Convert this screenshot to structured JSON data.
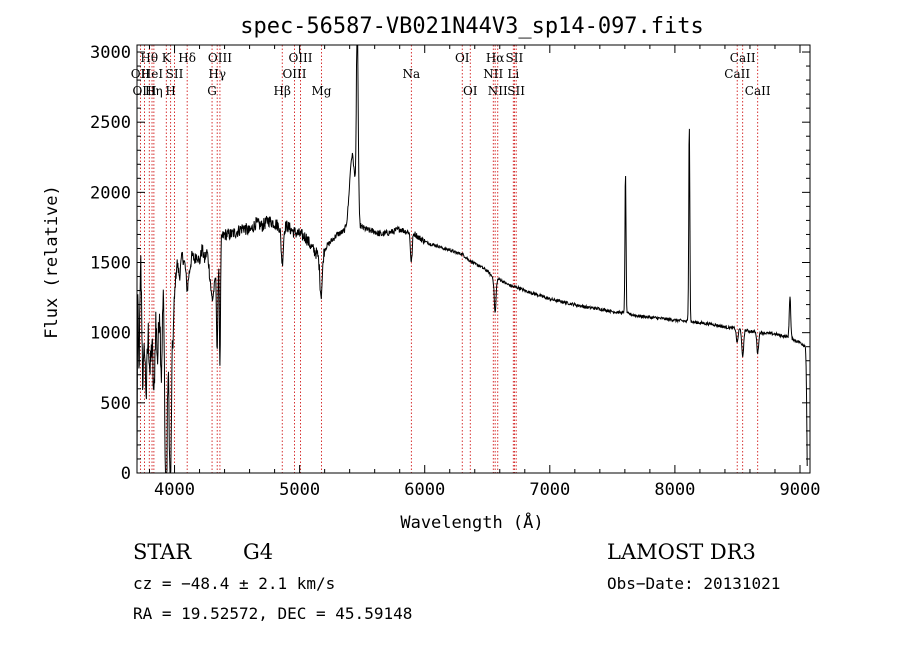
{
  "chart_data": {
    "type": "line",
    "title": "spec-56587-VB021N44V3_sp14-097.fits",
    "xlabel": "Wavelength (Å)",
    "ylabel": "Flux (relative)",
    "xlim": [
      3700,
      9080
    ],
    "ylim": [
      0,
      3050
    ],
    "xticks": [
      4000,
      5000,
      6000,
      7000,
      8000,
      9000
    ],
    "yticks": [
      0,
      500,
      1000,
      1500,
      2000,
      2500,
      3000
    ],
    "continuum": [
      [
        3700,
        0
      ],
      [
        3705,
        1300
      ],
      [
        3715,
        700
      ],
      [
        3730,
        1500
      ],
      [
        3745,
        900
      ],
      [
        3760,
        1600
      ],
      [
        3775,
        800
      ],
      [
        3790,
        1000
      ],
      [
        3805,
        700
      ],
      [
        3820,
        950
      ],
      [
        3835,
        500
      ],
      [
        3850,
        1100
      ],
      [
        3865,
        800
      ],
      [
        3880,
        1200
      ],
      [
        3895,
        700
      ],
      [
        3910,
        1300
      ],
      [
        3925,
        500
      ],
      [
        3935,
        400
      ],
      [
        3945,
        900
      ],
      [
        3955,
        600
      ],
      [
        3965,
        350
      ],
      [
        3975,
        900
      ],
      [
        3990,
        1000
      ],
      [
        4005,
        1350
      ],
      [
        4020,
        1500
      ],
      [
        4040,
        1400
      ],
      [
        4060,
        1550
      ],
      [
        4080,
        1500
      ],
      [
        4100,
        1520
      ],
      [
        4120,
        1450
      ],
      [
        4140,
        1550
      ],
      [
        4160,
        1520
      ],
      [
        4180,
        1560
      ],
      [
        4200,
        1500
      ],
      [
        4220,
        1600
      ],
      [
        4240,
        1520
      ],
      [
        4260,
        1580
      ],
      [
        4280,
        1450
      ],
      [
        4300,
        1500
      ],
      [
        4320,
        1350
      ],
      [
        4340,
        1580
      ],
      [
        4360,
        1620
      ],
      [
        4380,
        1680
      ],
      [
        4400,
        1700
      ],
      [
        4450,
        1700
      ],
      [
        4500,
        1720
      ],
      [
        4550,
        1750
      ],
      [
        4600,
        1720
      ],
      [
        4650,
        1780
      ],
      [
        4700,
        1760
      ],
      [
        4750,
        1800
      ],
      [
        4800,
        1780
      ],
      [
        4850,
        1750
      ],
      [
        4900,
        1760
      ],
      [
        4950,
        1720
      ],
      [
        5000,
        1700
      ],
      [
        5050,
        1680
      ],
      [
        5100,
        1600
      ],
      [
        5150,
        1550
      ],
      [
        5200,
        1600
      ],
      [
        5250,
        1650
      ],
      [
        5300,
        1700
      ],
      [
        5350,
        1720
      ],
      [
        5400,
        1750
      ],
      [
        5450,
        1780
      ],
      [
        5500,
        1750
      ],
      [
        5550,
        1730
      ],
      [
        5600,
        1720
      ],
      [
        5650,
        1700
      ],
      [
        5700,
        1710
      ],
      [
        5750,
        1720
      ],
      [
        5800,
        1740
      ],
      [
        5850,
        1720
      ],
      [
        5900,
        1720
      ],
      [
        5950,
        1680
      ],
      [
        6000,
        1650
      ],
      [
        6050,
        1630
      ],
      [
        6100,
        1620
      ],
      [
        6150,
        1600
      ],
      [
        6200,
        1590
      ],
      [
        6250,
        1570
      ],
      [
        6300,
        1560
      ],
      [
        6350,
        1520
      ],
      [
        6400,
        1490
      ],
      [
        6450,
        1470
      ],
      [
        6500,
        1440
      ],
      [
        6560,
        1380
      ],
      [
        6600,
        1380
      ],
      [
        6650,
        1350
      ],
      [
        6700,
        1330
      ],
      [
        6750,
        1320
      ],
      [
        6800,
        1300
      ],
      [
        6900,
        1270
      ],
      [
        7000,
        1240
      ],
      [
        7100,
        1220
      ],
      [
        7200,
        1200
      ],
      [
        7300,
        1180
      ],
      [
        7400,
        1170
      ],
      [
        7500,
        1150
      ],
      [
        7600,
        1140
      ],
      [
        7700,
        1120
      ],
      [
        7800,
        1110
      ],
      [
        7900,
        1100
      ],
      [
        8000,
        1090
      ],
      [
        8100,
        1080
      ],
      [
        8200,
        1070
      ],
      [
        8300,
        1060
      ],
      [
        8400,
        1040
      ],
      [
        8500,
        1030
      ],
      [
        8600,
        1010
      ],
      [
        8700,
        1000
      ],
      [
        8800,
        990
      ],
      [
        8900,
        970
      ],
      [
        9000,
        930
      ],
      [
        9050,
        900
      ]
    ],
    "features": [
      {
        "center": 3760,
        "width": 15,
        "depth": -650
      },
      {
        "center": 3934,
        "width": 10,
        "depth": -900
      },
      {
        "center": 3969,
        "width": 10,
        "depth": -700
      },
      {
        "center": 4101,
        "width": 12,
        "depth": -200
      },
      {
        "center": 4300,
        "width": 14,
        "depth": -250
      },
      {
        "center": 4341,
        "width": 8,
        "depth": -700
      },
      {
        "center": 4363,
        "width": 6,
        "depth": -900
      },
      {
        "center": 4861,
        "width": 12,
        "depth": -250
      },
      {
        "center": 5172,
        "width": 14,
        "depth": -300
      },
      {
        "center": 5420,
        "width": 30,
        "depth": 500
      },
      {
        "center": 5461,
        "width": 10,
        "depth": 1400
      },
      {
        "center": 5893,
        "width": 10,
        "depth": -220
      },
      {
        "center": 6563,
        "width": 10,
        "depth": -240
      },
      {
        "center": 7605,
        "width": 6,
        "depth": 1000
      },
      {
        "center": 8115,
        "width": 6,
        "depth": 1420
      },
      {
        "center": 8498,
        "width": 10,
        "depth": -100
      },
      {
        "center": 8542,
        "width": 10,
        "depth": -200
      },
      {
        "center": 8662,
        "width": 10,
        "depth": -150
      },
      {
        "center": 8920,
        "width": 8,
        "depth": 300
      },
      {
        "center": 9060,
        "width": 8,
        "depth": -900
      }
    ],
    "lines": [
      {
        "label": "Hθ",
        "x": 3798,
        "row": 1
      },
      {
        "label": "OII",
        "x": 3727,
        "row": 2
      },
      {
        "label": "HeI",
        "x": 3820,
        "row": 2
      },
      {
        "label": "OIII",
        "x": 3760,
        "row": 3
      },
      {
        "label": "Hη",
        "x": 3835,
        "row": 3
      },
      {
        "label": "K",
        "x": 3934,
        "row": 1
      },
      {
        "label": "SII",
        "x": 4000,
        "row": 2
      },
      {
        "label": "H",
        "x": 3969,
        "row": 3
      },
      {
        "label": "Hδ",
        "x": 4101,
        "row": 1
      },
      {
        "label": "OIII",
        "x": 4363,
        "row": 1
      },
      {
        "label": "Hγ",
        "x": 4341,
        "row": 2
      },
      {
        "label": "G",
        "x": 4300,
        "row": 3
      },
      {
        "label": "OIII",
        "x": 5007,
        "row": 1
      },
      {
        "label": "OIII",
        "x": 4959,
        "row": 2
      },
      {
        "label": "Hβ",
        "x": 4861,
        "row": 3
      },
      {
        "label": "Mg",
        "x": 5175,
        "row": 3
      },
      {
        "label": "Na",
        "x": 5893,
        "row": 2
      },
      {
        "label": "OI",
        "x": 6300,
        "row": 1
      },
      {
        "label": "OI",
        "x": 6364,
        "row": 3
      },
      {
        "label": "Hα",
        "x": 6563,
        "row": 1
      },
      {
        "label": "NII",
        "x": 6548,
        "row": 2
      },
      {
        "label": "NII",
        "x": 6584,
        "row": 3
      },
      {
        "label": "SII",
        "x": 6717,
        "row": 1
      },
      {
        "label": "Li",
        "x": 6708,
        "row": 2
      },
      {
        "label": "SII",
        "x": 6731,
        "row": 3
      },
      {
        "label": "CaII",
        "x": 8542,
        "row": 1
      },
      {
        "label": "CaII",
        "x": 8498,
        "row": 2
      },
      {
        "label": "CaII",
        "x": 8662,
        "row": 3
      }
    ]
  },
  "info": {
    "class_label": "STAR",
    "subclass": "G4",
    "survey": "LAMOST DR3",
    "cz": "cz = −48.4 ± 2.1 km/s",
    "obs_date": "Obs−Date: 20131021",
    "coords": "RA =  19.52572, DEC =  45.59148"
  }
}
